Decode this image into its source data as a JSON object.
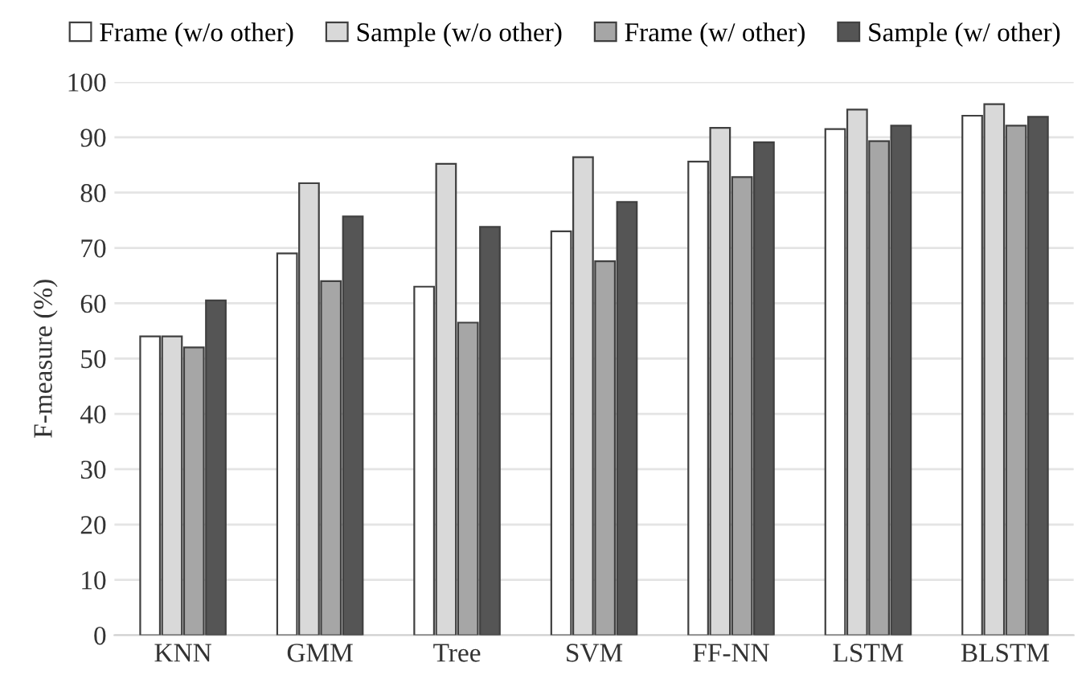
{
  "chart_data": {
    "type": "bar",
    "ylabel": "F-measure (%)",
    "categories": [
      "KNN",
      "GMM",
      "Tree",
      "SVM",
      "FF-NN",
      "LSTM",
      "BLSTM"
    ],
    "series": [
      {
        "name": "Frame (w/o other)",
        "color": "#ffffff",
        "values": [
          54,
          69,
          63,
          73,
          85.6,
          91.5,
          93.9
        ]
      },
      {
        "name": "Sample (w/o other)",
        "color": "#d9d9d9",
        "values": [
          54,
          81.7,
          85.2,
          86.4,
          91.7,
          95,
          96
        ]
      },
      {
        "name": "Frame (w/ other)",
        "color": "#a6a6a6",
        "values": [
          52,
          64,
          56.5,
          67.6,
          82.8,
          89.3,
          92.1
        ]
      },
      {
        "name": "Sample (w/ other)",
        "color": "#555555",
        "values": [
          60.5,
          75.7,
          73.8,
          78.3,
          89.1,
          92.1,
          93.7
        ]
      }
    ],
    "ylim": [
      0,
      100
    ],
    "yticks": [
      0,
      10,
      20,
      30,
      40,
      50,
      60,
      70,
      80,
      90,
      100
    ],
    "grid": "y",
    "legend": "top"
  }
}
